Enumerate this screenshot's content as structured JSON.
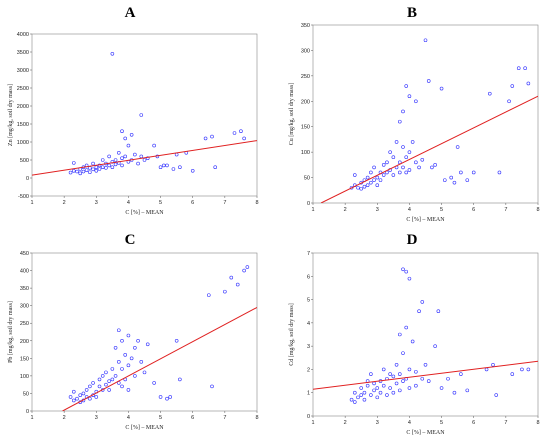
{
  "chart_data": [
    {
      "type": "scatter",
      "panel": "A",
      "xlabel": "C [%] – MEAN",
      "ylabel": "Zn [mg/kg, soil dry mass]",
      "xlim": [
        1,
        8
      ],
      "ylim": [
        -500,
        4000
      ],
      "xticks": [
        1,
        2,
        3,
        4,
        5,
        6,
        7,
        8
      ],
      "yticks": [
        -500,
        0,
        500,
        1000,
        1500,
        2000,
        2500,
        3000,
        3500,
        4000
      ],
      "fit_line": [
        [
          1,
          80
        ],
        [
          8,
          1040
        ]
      ],
      "points": [
        [
          2.2,
          150
        ],
        [
          2.3,
          200
        ],
        [
          2.3,
          420
        ],
        [
          2.4,
          180
        ],
        [
          2.5,
          250
        ],
        [
          2.5,
          130
        ],
        [
          2.6,
          300
        ],
        [
          2.6,
          180
        ],
        [
          2.7,
          220
        ],
        [
          2.7,
          350
        ],
        [
          2.8,
          160
        ],
        [
          2.8,
          280
        ],
        [
          2.9,
          240
        ],
        [
          2.9,
          400
        ],
        [
          3.0,
          300
        ],
        [
          3.0,
          200
        ],
        [
          3.1,
          350
        ],
        [
          3.1,
          250
        ],
        [
          3.2,
          500
        ],
        [
          3.2,
          300
        ],
        [
          3.3,
          400
        ],
        [
          3.3,
          280
        ],
        [
          3.4,
          350
        ],
        [
          3.4,
          600
        ],
        [
          3.5,
          450
        ],
        [
          3.5,
          300
        ],
        [
          3.5,
          3450
        ],
        [
          3.6,
          500
        ],
        [
          3.6,
          380
        ],
        [
          3.7,
          700
        ],
        [
          3.7,
          420
        ],
        [
          3.8,
          1300
        ],
        [
          3.8,
          550
        ],
        [
          3.8,
          350
        ],
        [
          3.9,
          1100
        ],
        [
          3.9,
          600
        ],
        [
          4.0,
          900
        ],
        [
          4.0,
          450
        ],
        [
          4.1,
          1200
        ],
        [
          4.1,
          500
        ],
        [
          4.2,
          650
        ],
        [
          4.3,
          400
        ],
        [
          4.4,
          1750
        ],
        [
          4.4,
          600
        ],
        [
          4.5,
          500
        ],
        [
          4.6,
          550
        ],
        [
          4.8,
          900
        ],
        [
          4.9,
          600
        ],
        [
          5.0,
          300
        ],
        [
          5.1,
          350
        ],
        [
          5.2,
          350
        ],
        [
          5.4,
          250
        ],
        [
          5.5,
          650
        ],
        [
          5.6,
          300
        ],
        [
          5.8,
          700
        ],
        [
          6.0,
          200
        ],
        [
          6.4,
          1100
        ],
        [
          6.6,
          1150
        ],
        [
          6.7,
          300
        ],
        [
          7.3,
          1250
        ],
        [
          7.5,
          1300
        ],
        [
          7.6,
          1100
        ]
      ]
    },
    {
      "type": "scatter",
      "panel": "B",
      "xlabel": "C [%] – MEAN",
      "ylabel": "Cu [mg/kg, soil dry mass]",
      "xlim": [
        1,
        8
      ],
      "ylim": [
        0,
        350
      ],
      "xticks": [
        1,
        2,
        3,
        4,
        5,
        6,
        7,
        8
      ],
      "yticks": [
        0,
        50,
        100,
        150,
        200,
        250,
        300,
        350
      ],
      "fit_line": [
        [
          1.25,
          0
        ],
        [
          8,
          210
        ]
      ],
      "points": [
        [
          2.2,
          30
        ],
        [
          2.3,
          55
        ],
        [
          2.3,
          35
        ],
        [
          2.4,
          30
        ],
        [
          2.5,
          40
        ],
        [
          2.5,
          28
        ],
        [
          2.6,
          45
        ],
        [
          2.6,
          32
        ],
        [
          2.7,
          50
        ],
        [
          2.7,
          35
        ],
        [
          2.8,
          40
        ],
        [
          2.8,
          60
        ],
        [
          2.9,
          45
        ],
        [
          2.9,
          70
        ],
        [
          3.0,
          50
        ],
        [
          3.0,
          35
        ],
        [
          3.1,
          60
        ],
        [
          3.1,
          45
        ],
        [
          3.2,
          75
        ],
        [
          3.2,
          55
        ],
        [
          3.3,
          80
        ],
        [
          3.3,
          60
        ],
        [
          3.4,
          100
        ],
        [
          3.4,
          65
        ],
        [
          3.5,
          90
        ],
        [
          3.5,
          55
        ],
        [
          3.6,
          120
        ],
        [
          3.6,
          70
        ],
        [
          3.7,
          160
        ],
        [
          3.7,
          80
        ],
        [
          3.7,
          60
        ],
        [
          3.8,
          180
        ],
        [
          3.8,
          110
        ],
        [
          3.8,
          70
        ],
        [
          3.9,
          230
        ],
        [
          3.9,
          90
        ],
        [
          3.9,
          60
        ],
        [
          4.0,
          210
        ],
        [
          4.0,
          100
        ],
        [
          4.0,
          65
        ],
        [
          4.1,
          120
        ],
        [
          4.2,
          200
        ],
        [
          4.2,
          80
        ],
        [
          4.3,
          70
        ],
        [
          4.4,
          85
        ],
        [
          4.5,
          320
        ],
        [
          4.6,
          240
        ],
        [
          4.7,
          70
        ],
        [
          4.8,
          75
        ],
        [
          5.0,
          225
        ],
        [
          5.1,
          45
        ],
        [
          5.3,
          50
        ],
        [
          5.4,
          40
        ],
        [
          5.5,
          110
        ],
        [
          5.6,
          60
        ],
        [
          5.8,
          45
        ],
        [
          6.0,
          60
        ],
        [
          6.5,
          215
        ],
        [
          6.8,
          60
        ],
        [
          7.1,
          200
        ],
        [
          7.2,
          230
        ],
        [
          7.4,
          265
        ],
        [
          7.6,
          265
        ],
        [
          7.7,
          235
        ]
      ]
    },
    {
      "type": "scatter",
      "panel": "C",
      "xlabel": "C [%] – MEAN",
      "ylabel": "Pb [mg/kg, soil dry mass]",
      "xlim": [
        1,
        8
      ],
      "ylim": [
        0,
        450
      ],
      "xticks": [
        1,
        2,
        3,
        4,
        5,
        6,
        7,
        8
      ],
      "yticks": [
        0,
        50,
        100,
        150,
        200,
        250,
        300,
        350,
        400,
        450
      ],
      "fit_line": [
        [
          1.95,
          0
        ],
        [
          8,
          295
        ]
      ],
      "points": [
        [
          2.2,
          40
        ],
        [
          2.3,
          30
        ],
        [
          2.3,
          55
        ],
        [
          2.4,
          35
        ],
        [
          2.5,
          45
        ],
        [
          2.5,
          25
        ],
        [
          2.6,
          50
        ],
        [
          2.6,
          30
        ],
        [
          2.7,
          40
        ],
        [
          2.7,
          60
        ],
        [
          2.8,
          35
        ],
        [
          2.8,
          70
        ],
        [
          2.9,
          45
        ],
        [
          2.9,
          80
        ],
        [
          3.0,
          55
        ],
        [
          3.0,
          40
        ],
        [
          3.1,
          70
        ],
        [
          3.1,
          90
        ],
        [
          3.2,
          60
        ],
        [
          3.2,
          100
        ],
        [
          3.3,
          75
        ],
        [
          3.3,
          110
        ],
        [
          3.4,
          85
        ],
        [
          3.4,
          60
        ],
        [
          3.5,
          120
        ],
        [
          3.5,
          90
        ],
        [
          3.6,
          180
        ],
        [
          3.6,
          100
        ],
        [
          3.7,
          230
        ],
        [
          3.7,
          140
        ],
        [
          3.7,
          80
        ],
        [
          3.8,
          200
        ],
        [
          3.8,
          120
        ],
        [
          3.8,
          70
        ],
        [
          3.9,
          160
        ],
        [
          3.9,
          90
        ],
        [
          4.0,
          215
        ],
        [
          4.0,
          130
        ],
        [
          4.0,
          60
        ],
        [
          4.1,
          150
        ],
        [
          4.2,
          180
        ],
        [
          4.2,
          100
        ],
        [
          4.3,
          200
        ],
        [
          4.4,
          140
        ],
        [
          4.5,
          110
        ],
        [
          4.6,
          190
        ],
        [
          4.8,
          80
        ],
        [
          5.0,
          40
        ],
        [
          5.2,
          35
        ],
        [
          5.3,
          40
        ],
        [
          5.5,
          200
        ],
        [
          5.6,
          90
        ],
        [
          6.5,
          330
        ],
        [
          6.6,
          70
        ],
        [
          7.0,
          340
        ],
        [
          7.2,
          380
        ],
        [
          7.4,
          360
        ],
        [
          7.6,
          400
        ],
        [
          7.7,
          410
        ]
      ]
    },
    {
      "type": "scatter",
      "panel": "D",
      "xlabel": "C [%] – MEAN",
      "ylabel": "Cd [mg/kg, soil dry mass]",
      "xlim": [
        1,
        8
      ],
      "ylim": [
        0,
        7
      ],
      "xticks": [
        1,
        2,
        3,
        4,
        5,
        6,
        7,
        8
      ],
      "yticks": [
        0,
        1,
        2,
        3,
        4,
        5,
        6,
        7
      ],
      "fit_line": [
        [
          1,
          1.15
        ],
        [
          8,
          2.35
        ]
      ],
      "points": [
        [
          2.2,
          0.7
        ],
        [
          2.3,
          1.0
        ],
        [
          2.3,
          0.6
        ],
        [
          2.4,
          0.8
        ],
        [
          2.5,
          1.2
        ],
        [
          2.5,
          0.9
        ],
        [
          2.6,
          1.0
        ],
        [
          2.6,
          0.7
        ],
        [
          2.7,
          1.3
        ],
        [
          2.7,
          1.5
        ],
        [
          2.8,
          0.9
        ],
        [
          2.8,
          1.8
        ],
        [
          2.9,
          1.1
        ],
        [
          2.9,
          1.4
        ],
        [
          3.0,
          1.2
        ],
        [
          3.0,
          0.8
        ],
        [
          3.1,
          1.5
        ],
        [
          3.1,
          1.0
        ],
        [
          3.2,
          2.0
        ],
        [
          3.2,
          1.3
        ],
        [
          3.3,
          1.6
        ],
        [
          3.3,
          0.9
        ],
        [
          3.4,
          1.8
        ],
        [
          3.4,
          1.2
        ],
        [
          3.5,
          1.7
        ],
        [
          3.5,
          1.0
        ],
        [
          3.6,
          2.2
        ],
        [
          3.6,
          1.4
        ],
        [
          3.7,
          3.5
        ],
        [
          3.7,
          1.8
        ],
        [
          3.7,
          1.1
        ],
        [
          3.8,
          6.3
        ],
        [
          3.8,
          2.7
        ],
        [
          3.8,
          1.5
        ],
        [
          3.9,
          6.2
        ],
        [
          3.9,
          3.8
        ],
        [
          3.9,
          1.6
        ],
        [
          4.0,
          5.9
        ],
        [
          4.0,
          2.0
        ],
        [
          4.0,
          1.2
        ],
        [
          4.1,
          3.2
        ],
        [
          4.2,
          1.9
        ],
        [
          4.2,
          1.3
        ],
        [
          4.3,
          4.5
        ],
        [
          4.4,
          4.9
        ],
        [
          4.4,
          1.6
        ],
        [
          4.5,
          2.2
        ],
        [
          4.6,
          1.5
        ],
        [
          4.8,
          3.0
        ],
        [
          4.9,
          4.5
        ],
        [
          5.0,
          1.2
        ],
        [
          5.2,
          1.6
        ],
        [
          5.4,
          1.0
        ],
        [
          5.6,
          1.8
        ],
        [
          5.8,
          1.1
        ],
        [
          6.4,
          2.0
        ],
        [
          6.6,
          2.2
        ],
        [
          6.7,
          0.9
        ],
        [
          7.2,
          1.8
        ],
        [
          7.5,
          2.0
        ],
        [
          7.7,
          2.0
        ]
      ]
    }
  ]
}
